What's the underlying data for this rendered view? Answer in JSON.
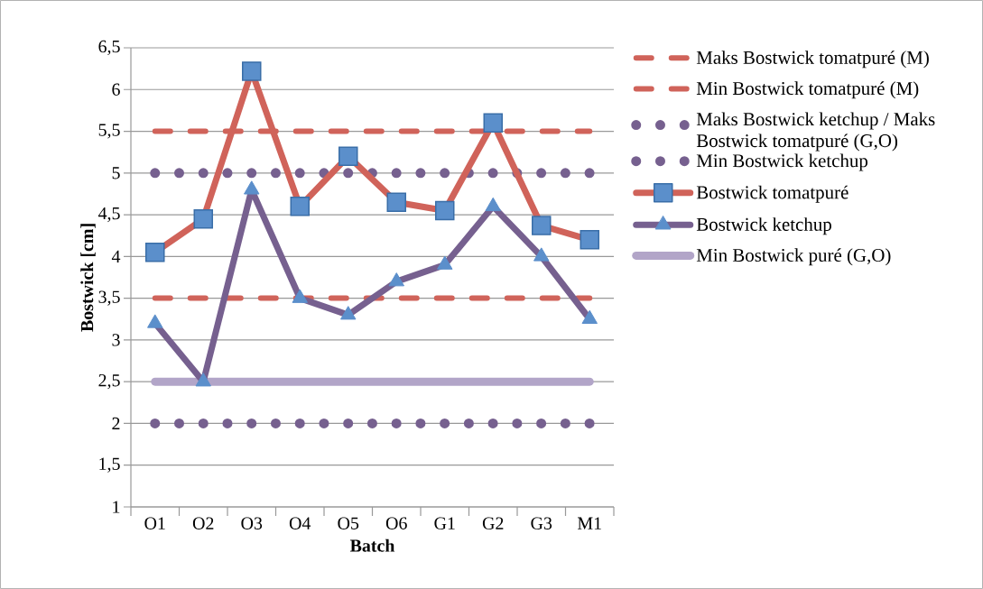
{
  "chart_data": {
    "type": "line",
    "xlabel": "Batch",
    "ylabel": "Bostwick [cm]",
    "categories": [
      "O1",
      "O2",
      "O3",
      "O4",
      "O5",
      "O6",
      "G1",
      "G2",
      "G3",
      "M1"
    ],
    "ylim": [
      1,
      6.5
    ],
    "yticks": [
      {
        "value": 1,
        "label": "1"
      },
      {
        "value": 1.5,
        "label": "1,5"
      },
      {
        "value": 2,
        "label": "2"
      },
      {
        "value": 2.5,
        "label": "2,5"
      },
      {
        "value": 3,
        "label": "3"
      },
      {
        "value": 3.5,
        "label": "3,5"
      },
      {
        "value": 4,
        "label": "4"
      },
      {
        "value": 4.5,
        "label": "4,5"
      },
      {
        "value": 5,
        "label": "5"
      },
      {
        "value": 5.5,
        "label": "5,5"
      },
      {
        "value": 6,
        "label": "6"
      },
      {
        "value": 6.5,
        "label": "6,5"
      }
    ],
    "grid": "y",
    "legend": "right",
    "series": [
      {
        "name": "Maks Bostwick tomatpuré (M)",
        "color": "#d0635a",
        "line_style": "dashed",
        "marker": "none",
        "values": [
          5.5,
          5.5,
          5.5,
          5.5,
          5.5,
          5.5,
          5.5,
          5.5,
          5.5,
          5.5
        ]
      },
      {
        "name": "Min Bostwick tomatpuré (M)",
        "color": "#d0635a",
        "line_style": "dashed",
        "marker": "none",
        "values": [
          3.5,
          3.5,
          3.5,
          3.5,
          3.5,
          3.5,
          3.5,
          3.5,
          3.5,
          3.5
        ]
      },
      {
        "name": "Maks Bostwick ketchup / Maks Bostwick tomatpuré (G,O)",
        "color": "#76608f",
        "line_style": "dotted",
        "marker": "none",
        "values": [
          5,
          5,
          5,
          5,
          5,
          5,
          5,
          5,
          5,
          5
        ]
      },
      {
        "name": "Min Bostwick ketchup",
        "color": "#76608f",
        "line_style": "dotted",
        "marker": "none",
        "values": [
          2,
          2,
          2,
          2,
          2,
          2,
          2,
          2,
          2,
          2
        ]
      },
      {
        "name": "Bostwick tomatpuré",
        "color": "#d0635a",
        "line_style": "solid",
        "marker": "square",
        "values": [
          4.05,
          4.45,
          6.22,
          4.6,
          5.2,
          4.65,
          4.55,
          5.6,
          4.37,
          4.2
        ]
      },
      {
        "name": "Bostwick ketchup",
        "color": "#76608f",
        "line_style": "solid",
        "marker": "triangle",
        "values": [
          3.2,
          2.5,
          4.8,
          3.5,
          3.3,
          3.7,
          3.9,
          4.6,
          4.0,
          3.25
        ]
      },
      {
        "name": "Min Bostwick puré (G,O)",
        "color": "#b2a5c8",
        "line_style": "solid",
        "marker": "none",
        "values": [
          2.5,
          2.5,
          2.5,
          2.5,
          2.5,
          2.5,
          2.5,
          2.5,
          2.5,
          2.5
        ]
      }
    ]
  }
}
